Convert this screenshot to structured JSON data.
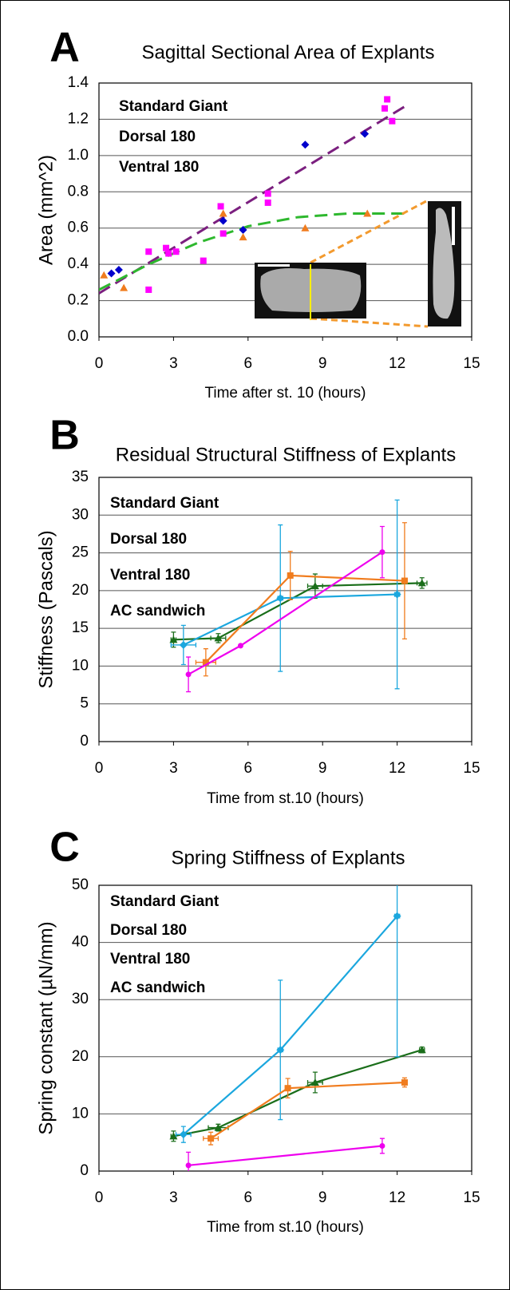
{
  "chart_data": [
    {
      "type": "scatter",
      "panel": "A",
      "title": "Sagittal Sectional Area of Explants",
      "x_label": "Time after st. 10 (hours)",
      "y_label": "Area (mm^2)",
      "xlim": [
        0,
        15
      ],
      "xticks": [
        0,
        3,
        6,
        9,
        12,
        15
      ],
      "ylim": [
        0,
        1.4
      ],
      "yticks": [
        {
          "value": 0,
          "label": "0.0"
        },
        0.2,
        0.4,
        0.6,
        0.8,
        {
          "value": 1,
          "label": "1.0"
        },
        1.2,
        1.4
      ],
      "grid": true,
      "series": [
        {
          "name": "Standard Giant",
          "color": "#ff00ff",
          "marker": "square",
          "x": [
            2.0,
            2.0,
            2.7,
            2.8,
            3.1,
            4.2,
            4.9,
            5.0,
            6.8,
            6.8,
            11.6,
            11.5,
            11.8
          ],
          "values": [
            0.47,
            0.26,
            0.49,
            0.46,
            0.47,
            0.42,
            0.72,
            0.57,
            0.79,
            0.74,
            1.31,
            1.26,
            1.19
          ]
        },
        {
          "name": "Dorsal 180",
          "color": "#0000cc",
          "marker": "diamond",
          "x": [
            0.5,
            0.8,
            5.0,
            5.8,
            8.3,
            10.7
          ],
          "values": [
            0.35,
            0.37,
            0.64,
            0.59,
            1.06,
            1.12
          ]
        },
        {
          "name": "Ventral 180",
          "color": "#f07c1e",
          "marker": "triangle",
          "x": [
            0.2,
            1.0,
            5.0,
            5.8,
            8.3,
            10.8
          ],
          "values": [
            0.34,
            0.27,
            0.68,
            0.55,
            0.6,
            0.68
          ]
        }
      ],
      "fit_lines": [
        {
          "color": "#7b1f7f",
          "x": [
            0,
            12.3
          ],
          "values": [
            0.24,
            1.27
          ]
        },
        {
          "color": "#2eb82e",
          "x": [
            0,
            2,
            4,
            6,
            8,
            10,
            12.5
          ],
          "values": [
            0.26,
            0.4,
            0.52,
            0.61,
            0.66,
            0.68,
            0.68
          ]
        }
      ]
    },
    {
      "type": "line",
      "panel": "B",
      "title": "Residual Structural Stiffness of Explants",
      "x_label": "Time from st.10 (hours)",
      "y_label": "Stiffness (Pascals)",
      "xlim": [
        0,
        15
      ],
      "xticks": [
        0,
        3,
        6,
        9,
        12,
        15
      ],
      "ylim": [
        0,
        35
      ],
      "yticks": [
        0,
        5,
        10,
        15,
        20,
        25,
        30,
        35
      ],
      "grid": true,
      "series": [
        {
          "name": "Standard Giant",
          "color": "#1a6e1a",
          "marker": "triangle",
          "x": [
            3.0,
            4.8,
            8.7,
            13.0
          ],
          "values": [
            13.5,
            13.7,
            20.6,
            21.0
          ],
          "y_errors": [
            1.0,
            0.6,
            1.6,
            0.7
          ],
          "x_errors": [
            0.1,
            0.3,
            0.3,
            0.2
          ]
        },
        {
          "name": "Dorsal 180",
          "color": "#1ba7de",
          "marker": "diamond",
          "x": [
            3.4,
            7.3,
            12.0
          ],
          "values": [
            12.8,
            19.0,
            19.5
          ],
          "y_errors": [
            2.6,
            9.7,
            12.5
          ],
          "x_errors": [
            0.5,
            0.1,
            0.1
          ]
        },
        {
          "name": "Ventral 180",
          "color": "#f07c1e",
          "marker": "square",
          "x": [
            4.3,
            7.7,
            12.3
          ],
          "values": [
            10.5,
            22.0,
            21.3
          ],
          "y_errors": [
            1.8,
            3.2,
            7.7
          ],
          "x_errors": [
            0.4,
            0.1,
            0.1
          ]
        },
        {
          "name": "AC sandwich",
          "color": "#ee00ee",
          "marker": "circle",
          "x": [
            3.6,
            5.7,
            11.4
          ],
          "values": [
            8.9,
            12.7,
            25.1
          ],
          "y_errors": [
            2.3,
            0,
            3.4
          ],
          "x_errors": [
            0,
            0,
            0
          ]
        }
      ]
    },
    {
      "type": "line",
      "panel": "C",
      "title": "Spring Stiffness of Explants",
      "x_label": "Time from st.10 (hours)",
      "y_label": "Spring constant (µN/mm)",
      "xlim": [
        0,
        15
      ],
      "xticks": [
        0,
        3,
        6,
        9,
        12,
        15
      ],
      "ylim": [
        0,
        50
      ],
      "yticks": [
        0,
        10,
        20,
        30,
        40,
        50
      ],
      "grid": true,
      "series": [
        {
          "name": "Standard Giant",
          "color": "#1a6e1a",
          "marker": "triangle",
          "x": [
            3.0,
            4.8,
            8.7,
            13.0
          ],
          "values": [
            6.1,
            7.6,
            15.5,
            21.2
          ],
          "y_errors": [
            0.9,
            0.6,
            1.8,
            0.5
          ],
          "x_errors": [
            0.1,
            0.4,
            0.3,
            0.1
          ]
        },
        {
          "name": "Dorsal 180",
          "color": "#1ba7de",
          "marker": "diamond",
          "x": [
            3.4,
            7.3,
            12.0
          ],
          "values": [
            6.4,
            21.2,
            44.6
          ],
          "y_errors": [
            1.4,
            12.2,
            24.6
          ],
          "x_errors": [
            0.3,
            0.1,
            0.1
          ]
        },
        {
          "name": "Ventral 180",
          "color": "#f07c1e",
          "marker": "square",
          "x": [
            4.5,
            7.6,
            12.3
          ],
          "values": [
            5.7,
            14.5,
            15.5
          ],
          "y_errors": [
            1.1,
            1.7,
            0.8
          ],
          "x_errors": [
            0.3,
            0.1,
            0.1
          ]
        },
        {
          "name": "AC sandwich",
          "color": "#ee00ee",
          "marker": "circle",
          "x": [
            3.6,
            11.4
          ],
          "values": [
            1.0,
            4.4
          ],
          "y_errors": [
            2.3,
            1.3
          ],
          "x_errors": [
            0,
            0
          ]
        }
      ]
    }
  ]
}
